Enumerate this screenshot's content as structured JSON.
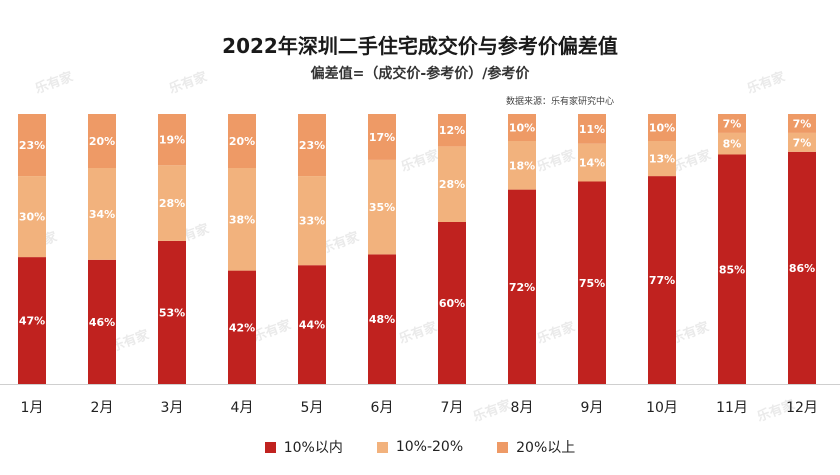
{
  "header": {
    "title": "2022年深圳二手住宅成交价与参考价偏差值",
    "subtitle": "偏差值=（成交价-参考价）/参考价",
    "source": "数据来源：乐有家研究中心"
  },
  "watermark": {
    "text": "乐有家"
  },
  "colors": {
    "series_1": "#c0221f",
    "series_2": "#f2b27d",
    "series_3": "#ee9a66"
  },
  "chart_data": {
    "type": "bar",
    "stacked": true,
    "percent": true,
    "categories": [
      "1月",
      "2月",
      "3月",
      "4月",
      "5月",
      "6月",
      "7月",
      "8月",
      "9月",
      "10月",
      "11月",
      "12月"
    ],
    "series": [
      {
        "name": "10%以内",
        "values": [
          47,
          46,
          53,
          42,
          44,
          48,
          60,
          72,
          75,
          77,
          85,
          86
        ]
      },
      {
        "name": "10%-20%",
        "values": [
          30,
          34,
          28,
          38,
          33,
          35,
          28,
          18,
          14,
          13,
          8,
          7
        ]
      },
      {
        "name": "20%以上",
        "values": [
          23,
          20,
          19,
          20,
          23,
          17,
          12,
          10,
          11,
          10,
          7,
          7
        ]
      }
    ],
    "ylim": [
      0,
      100
    ],
    "legend": "bottom",
    "grid": false,
    "value_suffix": "%"
  }
}
